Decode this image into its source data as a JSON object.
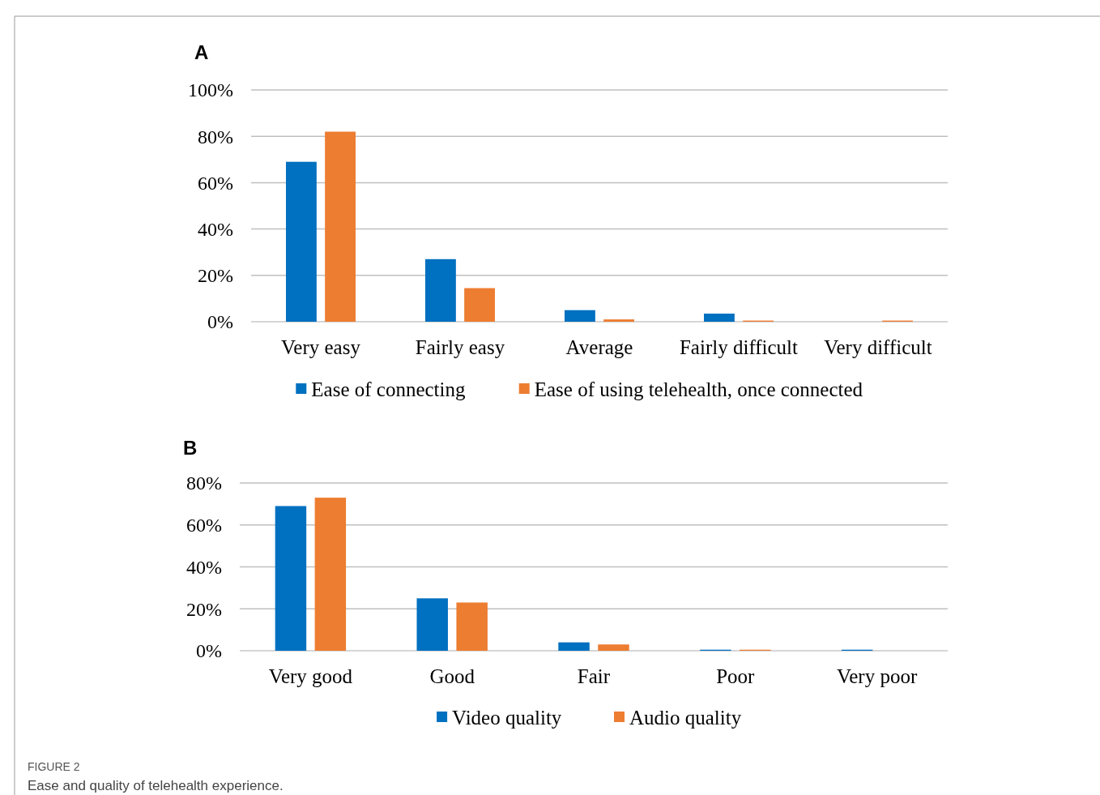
{
  "chart_data": [
    {
      "type": "bar",
      "title": "A",
      "categories": [
        "Very easy",
        "Fairly easy",
        "Average",
        "Fairly difficult",
        "Very difficult"
      ],
      "series": [
        {
          "name": "Ease of connecting",
          "color": "#0070c0",
          "values": [
            69,
            27,
            5,
            3.5,
            0
          ]
        },
        {
          "name": "Ease of using telehealth, once connected",
          "color": "#ed7d31",
          "values": [
            82,
            14.5,
            1,
            0.5,
            0.5
          ]
        }
      ],
      "ylim": [
        0,
        100
      ],
      "yticks": [
        {
          "value": 0,
          "label": "0%"
        },
        {
          "value": 20,
          "label": "20%"
        },
        {
          "value": 40,
          "label": "40%"
        },
        {
          "value": 60,
          "label": "60%"
        },
        {
          "value": 80,
          "label": "80%"
        },
        {
          "value": 100,
          "label": "100%"
        }
      ],
      "grid": "y",
      "legend": "bottom"
    },
    {
      "type": "bar",
      "title": "B",
      "categories": [
        "Very good",
        "Good",
        "Fair",
        "Poor",
        "Very poor"
      ],
      "series": [
        {
          "name": "Video quality",
          "color": "#0070c0",
          "values": [
            69,
            25,
            4,
            0.5,
            0.5
          ]
        },
        {
          "name": "Audio quality",
          "color": "#ed7d31",
          "values": [
            73,
            23,
            3,
            0.5,
            0
          ]
        }
      ],
      "ylim": [
        0,
        80
      ],
      "yticks": [
        {
          "value": 0,
          "label": "0%"
        },
        {
          "value": 20,
          "label": "20%"
        },
        {
          "value": 40,
          "label": "40%"
        },
        {
          "value": 60,
          "label": "60%"
        },
        {
          "value": 80,
          "label": "80%"
        }
      ],
      "grid": "y",
      "legend": "bottom",
      "annotations": [
        "FIGURE 2",
        "Ease and quality of telehealth experience."
      ]
    }
  ]
}
